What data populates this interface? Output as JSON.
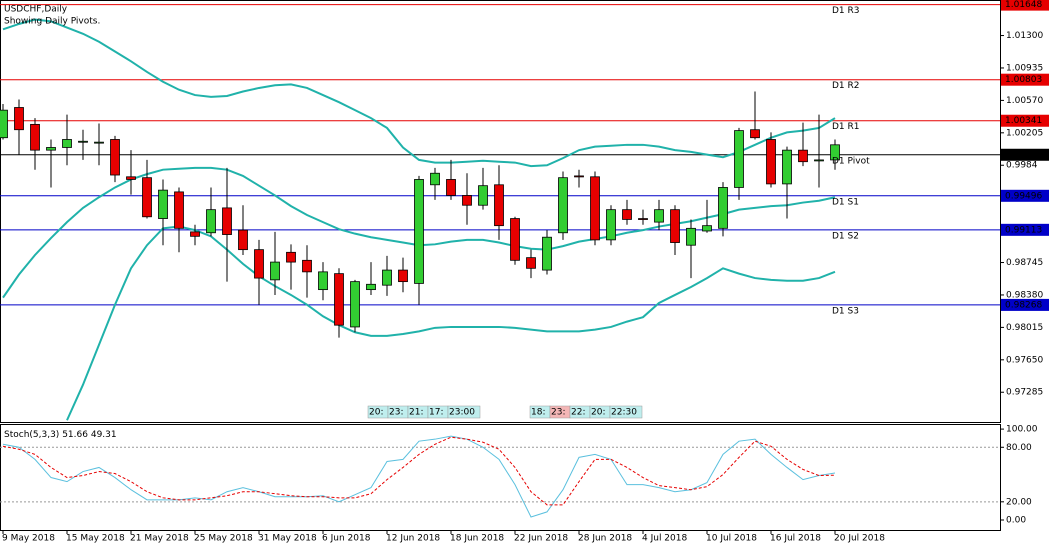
{
  "chart_data": [
    {
      "type": "candlestick",
      "title": "USDCHF,Daily",
      "subtitle": "Showing Daily Pivots.",
      "categories": [
        "9 May 2018",
        null,
        null,
        null,
        "15 May 2018",
        null,
        null,
        null,
        "21 May 2018",
        null,
        null,
        null,
        "25 May 2018",
        null,
        null,
        null,
        "31 May 2018",
        null,
        null,
        null,
        "6 Jun 2018",
        null,
        null,
        null,
        "12 Jun 2018",
        null,
        null,
        null,
        "18 Jun 2018",
        null,
        null,
        null,
        "22 Jun 2018",
        null,
        null,
        null,
        "28 Jun 2018",
        null,
        null,
        null,
        "4 Jul 2018",
        null,
        null,
        null,
        "10 Jul 2018",
        null,
        null,
        null,
        "16 Jul 2018",
        null,
        null,
        null,
        "20 Jul 2018"
      ],
      "open": [
        1.0015,
        1.0049,
        1.003,
        1.0001,
        1.0004,
        1.001,
        1.0009,
        1.0013,
        0.9971,
        0.997,
        0.9924,
        0.9954,
        0.9909,
        0.9908,
        0.9936,
        0.9911,
        0.9889,
        0.9855,
        0.9886,
        0.9877,
        0.9844,
        0.9862,
        0.9802,
        0.9844,
        0.9849,
        0.9866,
        0.9851,
        0.9962,
        0.9968,
        0.995,
        0.9939,
        0.9962,
        0.9924,
        0.988,
        0.9866,
        0.9908,
        0.9972,
        0.9971,
        0.99,
        0.9934,
        0.9924,
        0.992,
        0.9934,
        0.9894,
        0.991,
        0.9913,
        0.9959,
        1.0024,
        1.0013,
        0.9963,
        1.0001,
        0.999,
        0.999
      ],
      "high": [
        1.0053,
        1.0058,
        1.0037,
        1.0013,
        1.0041,
        1.0024,
        1.0031,
        1.0017,
        1.0001,
        0.999,
        0.9968,
        0.9959,
        0.9917,
        0.9959,
        0.9981,
        0.9939,
        0.99,
        0.9909,
        0.9895,
        0.9894,
        0.9875,
        0.9868,
        0.9855,
        0.9875,
        0.9882,
        0.988,
        0.9972,
        0.9981,
        0.999,
        0.9975,
        0.9981,
        0.9984,
        0.9926,
        0.9889,
        0.9911,
        0.9977,
        0.9979,
        0.9977,
        0.9939,
        0.9945,
        0.9934,
        0.9945,
        0.9939,
        0.9923,
        0.9945,
        0.9965,
        1.0026,
        1.0067,
        1.0021,
        1.0005,
        1.0032,
        1.0041,
        1.0013
      ],
      "low": [
        1.0013,
        0.9996,
        0.9979,
        0.9959,
        0.9984,
        0.999,
        0.9984,
        0.9965,
        0.9951,
        0.9924,
        0.9894,
        0.9886,
        0.9894,
        0.9904,
        0.9853,
        0.9883,
        0.9827,
        0.9838,
        0.9844,
        0.9835,
        0.9832,
        0.979,
        0.9796,
        0.9838,
        0.9837,
        0.9841,
        0.9827,
        0.9945,
        0.9945,
        0.9917,
        0.9934,
        0.99,
        0.9872,
        0.9857,
        0.9861,
        0.99,
        0.9959,
        0.9894,
        0.9894,
        0.9917,
        0.9917,
        0.9911,
        0.9883,
        0.9857,
        0.9908,
        0.9904,
        0.9945,
        1.0013,
        0.9959,
        0.9924,
        0.9983,
        0.9959,
        0.9979
      ],
      "close": [
        1.0046,
        1.0024,
        1.0001,
        1.0004,
        1.0013,
        1.0011,
        1.001,
        0.9973,
        0.9968,
        0.9926,
        0.9956,
        0.9913,
        0.9904,
        0.9934,
        0.9906,
        0.9889,
        0.9857,
        0.9875,
        0.9875,
        0.9864,
        0.9864,
        0.9804,
        0.9853,
        0.985,
        0.9866,
        0.9853,
        0.9968,
        0.9975,
        0.995,
        0.9939,
        0.9961,
        0.9916,
        0.9877,
        0.9868,
        0.9903,
        0.997,
        0.9971,
        0.99,
        0.9934,
        0.9923,
        0.9923,
        0.9934,
        0.9897,
        0.9913,
        0.9916,
        0.9959,
        1.0023,
        1.0015,
        0.9963,
        1.0001,
        0.9988,
        0.999,
        1.0007
      ],
      "up_color": "#32cd32",
      "down_color": "#e60000",
      "band_color": "#20b2aa",
      "bands": [
        {
          "values": [
            1.0137,
            1.0143,
            1.0148,
            1.0146,
            1.0139,
            1.0132,
            1.0123,
            1.0112,
            1.0101,
            1.0089,
            1.0078,
            1.0069,
            1.0063,
            1.0061,
            1.0062,
            1.0067,
            1.0071,
            1.0074,
            1.0075,
            1.0071,
            1.0063,
            1.0055,
            1.0046,
            1.0037,
            1.0026,
            1.0004,
            0.999,
            0.9987,
            0.9987,
            0.9988,
            0.9989,
            0.9988,
            0.9987,
            0.9983,
            0.9984,
            0.9992,
            1.0001,
            1.0005,
            1.0006,
            1.0007,
            1.0007,
            1.0005,
            1.0001,
            0.9999,
            0.9996,
            0.9993,
            0.9999,
            1.0007,
            1.0015,
            1.0021,
            1.0023,
            1.0026,
            1.0037
          ]
        },
        {
          "values": [
            0.9835,
            0.9861,
            0.9883,
            0.9902,
            0.992,
            0.9936,
            0.9948,
            0.9959,
            0.9968,
            0.9974,
            0.9979,
            0.998,
            0.9981,
            0.9981,
            0.9979,
            0.9972,
            0.9961,
            0.995,
            0.9938,
            0.9928,
            0.992,
            0.9912,
            0.9907,
            0.9903,
            0.99,
            0.9897,
            0.9894,
            0.9895,
            0.9898,
            0.99,
            0.99,
            0.9897,
            0.9893,
            0.989,
            0.9889,
            0.9893,
            0.9898,
            0.9901,
            0.9904,
            0.9908,
            0.9911,
            0.9915,
            0.9918,
            0.9921,
            0.9925,
            0.9929,
            0.9934,
            0.9936,
            0.9938,
            0.9939,
            0.9942,
            0.9944,
            0.9948
          ]
        },
        {
          "values": [
            null,
            null,
            null,
            null,
            0.9697,
            0.9737,
            0.9782,
            0.9827,
            0.9868,
            0.9894,
            0.9913,
            0.9915,
            0.9911,
            0.9904,
            0.9889,
            0.9873,
            0.9859,
            0.9848,
            0.9838,
            0.9827,
            0.9814,
            0.9804,
            0.9796,
            0.9792,
            0.9792,
            0.9794,
            0.9797,
            0.9801,
            0.9802,
            0.9802,
            0.9802,
            0.9802,
            0.9801,
            0.9799,
            0.9797,
            0.9797,
            0.9797,
            0.9799,
            0.9802,
            0.9808,
            0.9813,
            0.9829,
            0.9838,
            0.9847,
            0.9857,
            0.9868,
            0.9862,
            0.9857,
            0.9855,
            0.9854,
            0.9854,
            0.9857,
            0.9864
          ]
        }
      ],
      "levels": [
        {
          "name": "D1 R3",
          "value": 1.01648,
          "color": "#e60000"
        },
        {
          "name": "D1 R2",
          "value": 1.00803,
          "color": "#e60000"
        },
        {
          "name": "D1 R1",
          "value": 1.00341,
          "color": "#e60000"
        },
        {
          "name": "D1 Pivot",
          "value": 0.99958,
          "color": "#000000"
        },
        {
          "name": "D1 S1",
          "value": 0.99496,
          "color": "#0000c8"
        },
        {
          "name": "D1 S2",
          "value": 0.99113,
          "color": "#0000c8"
        },
        {
          "name": "D1 S3",
          "value": 0.98268,
          "color": "#0000c8"
        }
      ],
      "ylim": [
        0.9695,
        1.017
      ],
      "yticks": [
        {
          "value": 1.013,
          "label": "1.01300"
        },
        1.00935,
        {
          "value": 1.0057,
          "label": "1.00570"
        },
        1.00205,
        0.9984,
        0.98745,
        {
          "value": 0.9838,
          "label": "0.98380"
        },
        0.98015,
        {
          "value": 0.9765,
          "label": "0.97650"
        },
        0.97285
      ],
      "timers": [
        [
          "20:",
          "23:",
          "21:",
          "17:",
          "23:00"
        ],
        [
          "18:",
          "23:",
          "22:",
          "20:",
          "22:30"
        ]
      ]
    },
    {
      "type": "line",
      "title": "Stoch(5,3,3)",
      "series": [
        {
          "color": "#5bc0de",
          "values": [
            83.3,
            80,
            66.7,
            46.7,
            42.2,
            53.3,
            57.8,
            46.7,
            33.3,
            22.2,
            22.2,
            22.2,
            24.4,
            22.2,
            31.1,
            35.6,
            31.1,
            25.6,
            25.6,
            25.6,
            26.7,
            20,
            27.8,
            35.6,
            64.4,
            66.7,
            86.7,
            88.9,
            92.2,
            88.9,
            80,
            66.7,
            38.9,
            3.3,
            8.9,
            33.3,
            68.9,
            72.2,
            66.7,
            38.9,
            38.9,
            35.6,
            31.1,
            33.3,
            41.1,
            72.2,
            86.7,
            88.9,
            72.2,
            57.8,
            44.4,
            49,
            51.66
          ]
        },
        {
          "color": "#e60000",
          "dashed": true,
          "values": [
            81.1,
            77.8,
            72.2,
            57.8,
            46.7,
            48.9,
            53.3,
            51.1,
            42.2,
            31.1,
            24.4,
            22.2,
            22.2,
            24.4,
            26.7,
            31.1,
            31.1,
            28.9,
            26.7,
            25.6,
            25.6,
            24.4,
            24.4,
            28.9,
            44.4,
            57.8,
            72.2,
            83.3,
            91.1,
            88.9,
            85.6,
            77.8,
            57.8,
            31.1,
            16.7,
            16.7,
            42.2,
            66.7,
            66.7,
            57.8,
            46.7,
            37.8,
            35.6,
            33.3,
            36.7,
            50,
            68.9,
            86.7,
            81.1,
            66.7,
            55.6,
            48.9,
            49.31
          ]
        }
      ],
      "levels": [
        20,
        80
      ],
      "ylim": [
        -11,
        105.6
      ],
      "yticks": [
        {
          "value": 100,
          "label": "100.00"
        },
        {
          "value": 80,
          "label": "80.00"
        },
        {
          "value": 20,
          "label": "20.00"
        },
        {
          "value": 0,
          "label": "0.00"
        }
      ]
    }
  ]
}
